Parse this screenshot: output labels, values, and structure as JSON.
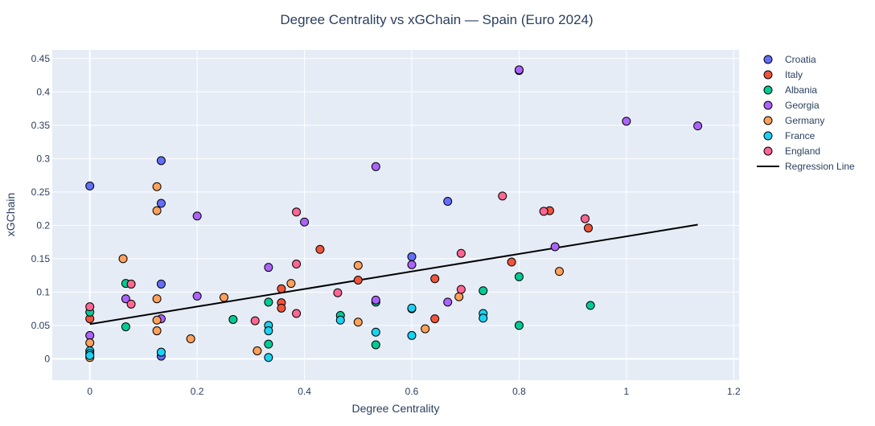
{
  "chart_data": {
    "type": "scatter",
    "title": "Degree Centrality vs xGChain — Spain (Euro 2024)",
    "xlabel": "Degree Centrality",
    "ylabel": "xGChain",
    "xlim": [
      -0.07,
      1.21
    ],
    "ylim": [
      -0.032,
      0.463
    ],
    "x_ticks": [
      0,
      0.2,
      0.4,
      0.6,
      0.8,
      1,
      1.2
    ],
    "x_tick_labels": [
      "0",
      "0.2",
      "0.4",
      "0.6",
      "0.8",
      "1",
      "1.2"
    ],
    "y_ticks": [
      0,
      0.05,
      0.1,
      0.15,
      0.2,
      0.25,
      0.3,
      0.35,
      0.4,
      0.45
    ],
    "y_tick_labels": [
      "0",
      "0.05",
      "0.1",
      "0.15",
      "0.2",
      "0.25",
      "0.3",
      "0.35",
      "0.4",
      "0.45"
    ],
    "grid": true,
    "legend_position": "right",
    "plot_bgcolor": "#E5ECF6",
    "series": [
      {
        "name": "Croatia",
        "color": "#636EFA",
        "points": [
          [
            0,
            0.259
          ],
          [
            0.133,
            0.297
          ],
          [
            0.133,
            0.233
          ],
          [
            0.133,
            0.112
          ],
          [
            0.6,
            0.153
          ],
          [
            0.6,
            0.075
          ],
          [
            0.667,
            0.236
          ],
          [
            0.8,
            0.432
          ],
          [
            0.133,
            0.004
          ]
        ]
      },
      {
        "name": "Italy",
        "color": "#EF553B",
        "points": [
          [
            0,
            0.06
          ],
          [
            0.357,
            0.105
          ],
          [
            0.357,
            0.084
          ],
          [
            0.357,
            0.076
          ],
          [
            0.429,
            0.164
          ],
          [
            0.5,
            0.118
          ],
          [
            0.643,
            0.12
          ],
          [
            0.643,
            0.06
          ],
          [
            0.786,
            0.145
          ],
          [
            0.857,
            0.222
          ],
          [
            0.929,
            0.196
          ]
        ]
      },
      {
        "name": "Albania",
        "color": "#00CC96",
        "points": [
          [
            0,
            0.07
          ],
          [
            0.067,
            0.113
          ],
          [
            0.067,
            0.048
          ],
          [
            0.267,
            0.059
          ],
          [
            0.333,
            0.085
          ],
          [
            0.333,
            0.022
          ],
          [
            0.467,
            0.065
          ],
          [
            0.533,
            0.085
          ],
          [
            0.533,
            0.021
          ],
          [
            0.733,
            0.102
          ],
          [
            0.8,
            0.123
          ],
          [
            0.8,
            0.05
          ],
          [
            0.933,
            0.08
          ]
        ]
      },
      {
        "name": "Georgia",
        "color": "#AB63FA",
        "points": [
          [
            0,
            0.035
          ],
          [
            0.067,
            0.09
          ],
          [
            0.133,
            0.06
          ],
          [
            0.2,
            0.214
          ],
          [
            0.2,
            0.094
          ],
          [
            0.333,
            0.137
          ],
          [
            0.4,
            0.205
          ],
          [
            0.533,
            0.288
          ],
          [
            0.533,
            0.088
          ],
          [
            0.6,
            0.141
          ],
          [
            0.667,
            0.085
          ],
          [
            0.8,
            0.433
          ],
          [
            0.867,
            0.168
          ],
          [
            1.0,
            0.356
          ],
          [
            1.133,
            0.349
          ]
        ]
      },
      {
        "name": "Germany",
        "color": "#FFA15A",
        "points": [
          [
            0,
            0.024
          ],
          [
            0,
            0.002
          ],
          [
            0.062,
            0.15
          ],
          [
            0.125,
            0.258
          ],
          [
            0.125,
            0.222
          ],
          [
            0.125,
            0.09
          ],
          [
            0.125,
            0.058
          ],
          [
            0.125,
            0.042
          ],
          [
            0.188,
            0.03
          ],
          [
            0.25,
            0.092
          ],
          [
            0.312,
            0.012
          ],
          [
            0.375,
            0.113
          ],
          [
            0.5,
            0.14
          ],
          [
            0.5,
            0.055
          ],
          [
            0.625,
            0.045
          ],
          [
            0.688,
            0.093
          ],
          [
            0.875,
            0.131
          ]
        ]
      },
      {
        "name": "France",
        "color": "#19D3F3",
        "points": [
          [
            0,
            0.012
          ],
          [
            0,
            0.008
          ],
          [
            0,
            0.005
          ],
          [
            0.133,
            0.01
          ],
          [
            0.333,
            0.05
          ],
          [
            0.333,
            0.042
          ],
          [
            0.333,
            0.002
          ],
          [
            0.467,
            0.058
          ],
          [
            0.533,
            0.04
          ],
          [
            0.6,
            0.076
          ],
          [
            0.6,
            0.035
          ],
          [
            0.733,
            0.068
          ],
          [
            0.733,
            0.061
          ]
        ]
      },
      {
        "name": "England",
        "color": "#FF6692",
        "points": [
          [
            0,
            0.078
          ],
          [
            0.077,
            0.112
          ],
          [
            0.077,
            0.082
          ],
          [
            0.308,
            0.057
          ],
          [
            0.385,
            0.22
          ],
          [
            0.385,
            0.142
          ],
          [
            0.385,
            0.068
          ],
          [
            0.462,
            0.099
          ],
          [
            0.692,
            0.158
          ],
          [
            0.692,
            0.104
          ],
          [
            0.769,
            0.244
          ],
          [
            0.846,
            0.221
          ],
          [
            0.923,
            0.21
          ]
        ]
      }
    ],
    "regression_line": {
      "name": "Regression Line",
      "color": "#000000",
      "x": [
        0,
        1.133
      ],
      "y": [
        0.052,
        0.201
      ]
    }
  }
}
